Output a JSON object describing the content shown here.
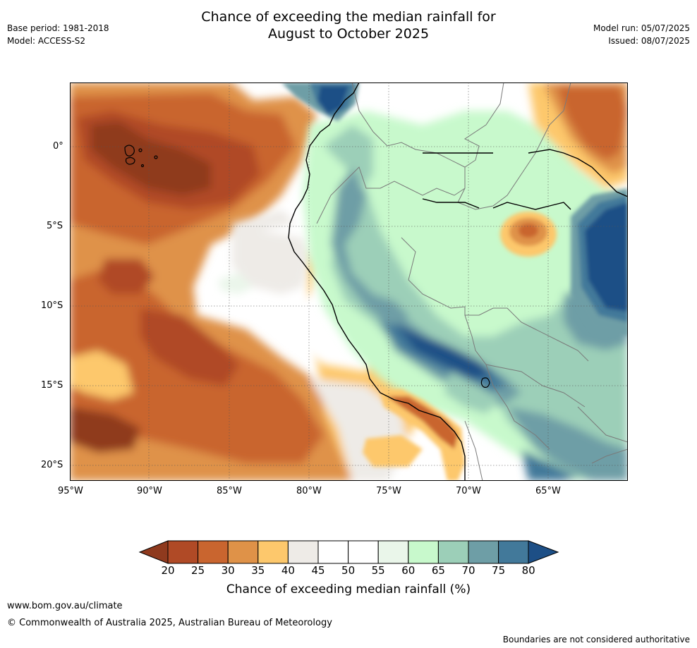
{
  "header": {
    "title_line1": "Chance of exceeding the median rainfall for",
    "title_line2": "August to October 2025",
    "base_period": "Base period: 1981-2018",
    "model": "Model: ACCESS-S2",
    "model_run": "Model run: 05/07/2025",
    "issued": "Issued: 08/07/2025"
  },
  "map": {
    "lon_ticks": [
      "95°W",
      "90°W",
      "85°W",
      "80°W",
      "75°W",
      "70°W",
      "65°W"
    ],
    "lat_ticks": [
      "0°",
      "5°S",
      "10°S",
      "15°S",
      "20°S"
    ]
  },
  "colorbar": {
    "ticks": [
      "20",
      "25",
      "30",
      "35",
      "40",
      "45",
      "50",
      "55",
      "60",
      "65",
      "70",
      "75",
      "80"
    ],
    "colors": [
      "#8f3a1e",
      "#b04a26",
      "#c9652f",
      "#df9248",
      "#fdc86c",
      "#eeebe7",
      "#ffffff",
      "#ffffff",
      "#eaf6ea",
      "#c8f9cc",
      "#9ccfb8",
      "#6e9ea6",
      "#42799a",
      "#1d4f86"
    ],
    "title": "Chance of exceeding median rainfall (%)"
  },
  "footer": {
    "url": "www.bom.gov.au/climate",
    "copyright": "© Commonwealth of Australia 2025, Australian Bureau of Meteorology",
    "disclaimer": "Boundaries are not considered authoritative"
  }
}
